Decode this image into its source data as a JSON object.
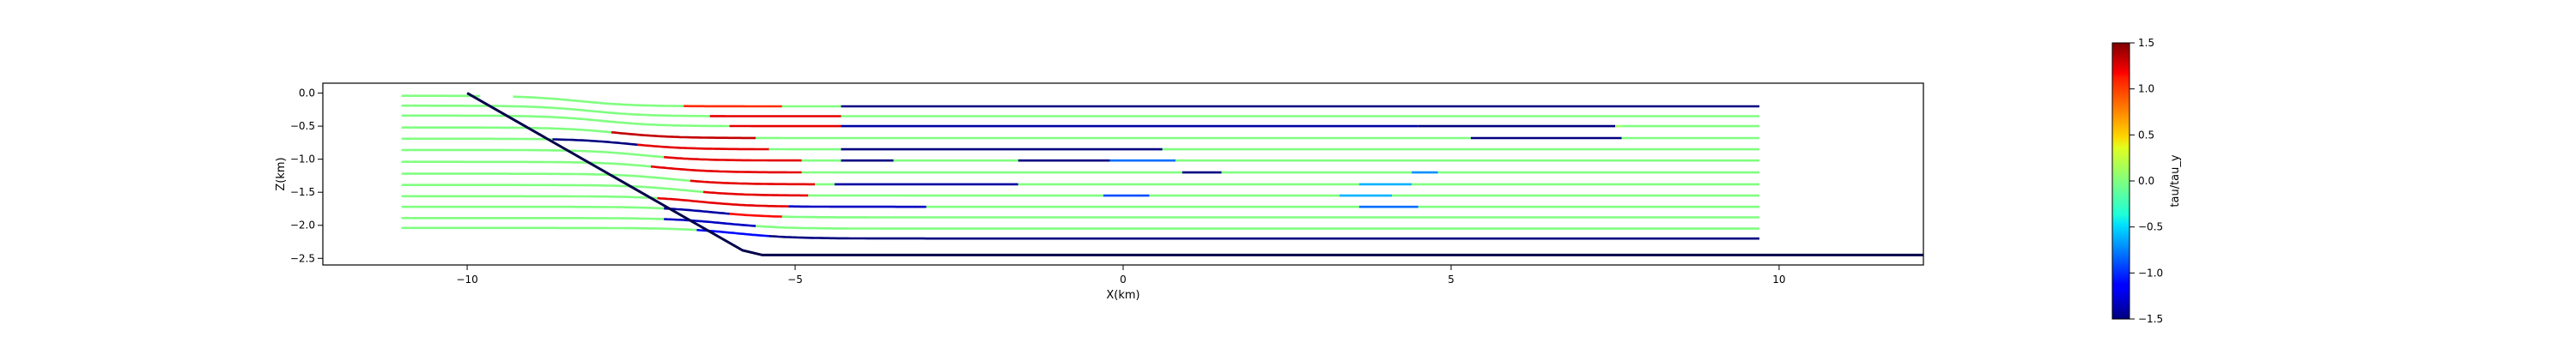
{
  "chart_data": {
    "type": "line",
    "xlabel": "X(km)",
    "ylabel": "Z(km)",
    "xlim": [
      -12.2,
      12.2
    ],
    "ylim": [
      -2.6,
      0.15
    ],
    "xticks": [
      -10,
      -5,
      0,
      5,
      10
    ],
    "yticks": [
      0.0,
      -0.5,
      -1.0,
      -1.5,
      -2.0,
      -2.5
    ],
    "grid": false,
    "colorbar": {
      "label": "tau/tau_y",
      "range": [
        -1.5,
        1.5
      ],
      "ticks": [
        1.5,
        1.0,
        0.5,
        0.0,
        -0.5,
        -1.0,
        -1.5
      ],
      "colormap": "jet"
    },
    "boundary": {
      "color": "#00004a",
      "points": [
        [
          -10.0,
          0.0
        ],
        [
          -5.8,
          -2.38
        ],
        [
          -5.5,
          -2.45
        ],
        [
          12.2,
          -2.45
        ]
      ]
    },
    "line_x_start": -11.0,
    "line_x_end": 9.7,
    "series": [
      {
        "y": -0.2,
        "segments": [
          [
            -11.0,
            -9.8,
            0.0
          ],
          [
            -9.3,
            -6.7,
            0.0
          ],
          [
            -6.7,
            -5.2,
            1.0
          ],
          [
            -5.2,
            -4.3,
            0.0
          ],
          [
            -4.3,
            4.7,
            -1.5
          ],
          [
            4.7,
            9.7,
            -1.5
          ]
        ]
      },
      {
        "y": -0.35,
        "segments": [
          [
            -11.0,
            -9.5,
            0.0
          ],
          [
            -9.5,
            -6.3,
            0.0
          ],
          [
            -6.3,
            -4.3,
            1.2
          ],
          [
            -4.3,
            9.7,
            0.0
          ]
        ]
      },
      {
        "y": -0.5,
        "segments": [
          [
            -11.0,
            -9.3,
            0.0
          ],
          [
            -9.3,
            -6.0,
            0.0
          ],
          [
            -6.0,
            -4.3,
            1.2
          ],
          [
            -4.3,
            4.5,
            -1.4
          ],
          [
            4.5,
            7.5,
            -1.5
          ],
          [
            7.5,
            7.6,
            0.1
          ],
          [
            7.6,
            9.7,
            0.0
          ]
        ]
      },
      {
        "y": -0.68,
        "segments": [
          [
            -11.0,
            -9.0,
            0.0
          ],
          [
            -9.0,
            -7.8,
            0.0
          ],
          [
            -7.8,
            -5.6,
            1.3
          ],
          [
            -5.6,
            -4.3,
            0.0
          ],
          [
            -4.3,
            5.3,
            0.0
          ],
          [
            5.3,
            7.6,
            -1.5
          ],
          [
            7.6,
            9.7,
            0.0
          ]
        ]
      },
      {
        "y": -0.85,
        "segments": [
          [
            -11.0,
            -8.7,
            0.0
          ],
          [
            -8.7,
            -7.4,
            -1.5
          ],
          [
            -7.4,
            -5.4,
            1.2
          ],
          [
            -5.4,
            -4.3,
            0.0
          ],
          [
            -4.3,
            0.6,
            -1.5
          ],
          [
            0.6,
            9.7,
            0.0
          ]
        ]
      },
      {
        "y": -1.02,
        "segments": [
          [
            -11.0,
            -8.3,
            0.0
          ],
          [
            -8.3,
            -7.0,
            0.0
          ],
          [
            -7.0,
            -4.9,
            1.2
          ],
          [
            -4.9,
            -4.3,
            0.0
          ],
          [
            -4.3,
            -3.5,
            -1.5
          ],
          [
            -3.5,
            -1.6,
            0.0
          ],
          [
            -1.6,
            -0.2,
            -1.5
          ],
          [
            -0.2,
            0.8,
            -0.8
          ],
          [
            0.8,
            9.7,
            0.0
          ]
        ]
      },
      {
        "y": -1.2,
        "segments": [
          [
            -11.0,
            -8.0,
            0.0
          ],
          [
            -8.0,
            -7.2,
            0.0
          ],
          [
            -7.2,
            -4.9,
            1.2
          ],
          [
            -4.9,
            -4.3,
            0.0
          ],
          [
            -4.3,
            0.9,
            0.0
          ],
          [
            0.9,
            1.5,
            -1.5
          ],
          [
            1.5,
            4.4,
            0.0
          ],
          [
            4.4,
            4.8,
            -0.7
          ],
          [
            4.8,
            9.7,
            0.0
          ]
        ]
      },
      {
        "y": -1.38,
        "segments": [
          [
            -11.0,
            -7.7,
            0.0
          ],
          [
            -7.7,
            -6.6,
            0.0
          ],
          [
            -6.6,
            -4.7,
            1.2
          ],
          [
            -4.7,
            -4.4,
            0.0
          ],
          [
            -4.4,
            -1.6,
            -1.4
          ],
          [
            -1.6,
            3.6,
            0.0
          ],
          [
            3.6,
            4.4,
            -0.6
          ],
          [
            4.4,
            9.7,
            0.0
          ]
        ]
      },
      {
        "y": -1.55,
        "segments": [
          [
            -11.0,
            -7.3,
            0.0
          ],
          [
            -7.3,
            -6.4,
            0.0
          ],
          [
            -6.4,
            -4.8,
            1.2
          ],
          [
            -4.8,
            -0.3,
            0.0
          ],
          [
            -0.3,
            0.4,
            -0.9
          ],
          [
            0.4,
            3.3,
            0.0
          ],
          [
            3.3,
            4.1,
            -0.6
          ],
          [
            4.1,
            9.7,
            0.0
          ]
        ]
      },
      {
        "y": -1.72,
        "segments": [
          [
            -11.0,
            -7.1,
            0.0
          ],
          [
            -7.1,
            -5.1,
            1.2
          ],
          [
            -5.1,
            -3.0,
            -1.3
          ],
          [
            -3.0,
            3.6,
            0.0
          ],
          [
            3.6,
            4.5,
            -0.8
          ],
          [
            4.5,
            9.7,
            0.0
          ]
        ]
      },
      {
        "y": -1.88,
        "segments": [
          [
            -11.0,
            -7.0,
            0.0
          ],
          [
            -7.0,
            -6.0,
            -1.4
          ],
          [
            -6.0,
            -5.2,
            1.1
          ],
          [
            -5.2,
            9.7,
            0.0
          ]
        ]
      },
      {
        "y": -2.05,
        "segments": [
          [
            -11.0,
            -7.0,
            0.0
          ],
          [
            -7.0,
            -5.6,
            -1.3
          ],
          [
            -5.6,
            9.7,
            0.0
          ]
        ]
      },
      {
        "y": -2.2,
        "segments": [
          [
            -11.0,
            -6.5,
            0.0
          ],
          [
            -6.5,
            -5.4,
            -1.1
          ],
          [
            -5.4,
            9.7,
            -1.5
          ]
        ]
      }
    ]
  }
}
